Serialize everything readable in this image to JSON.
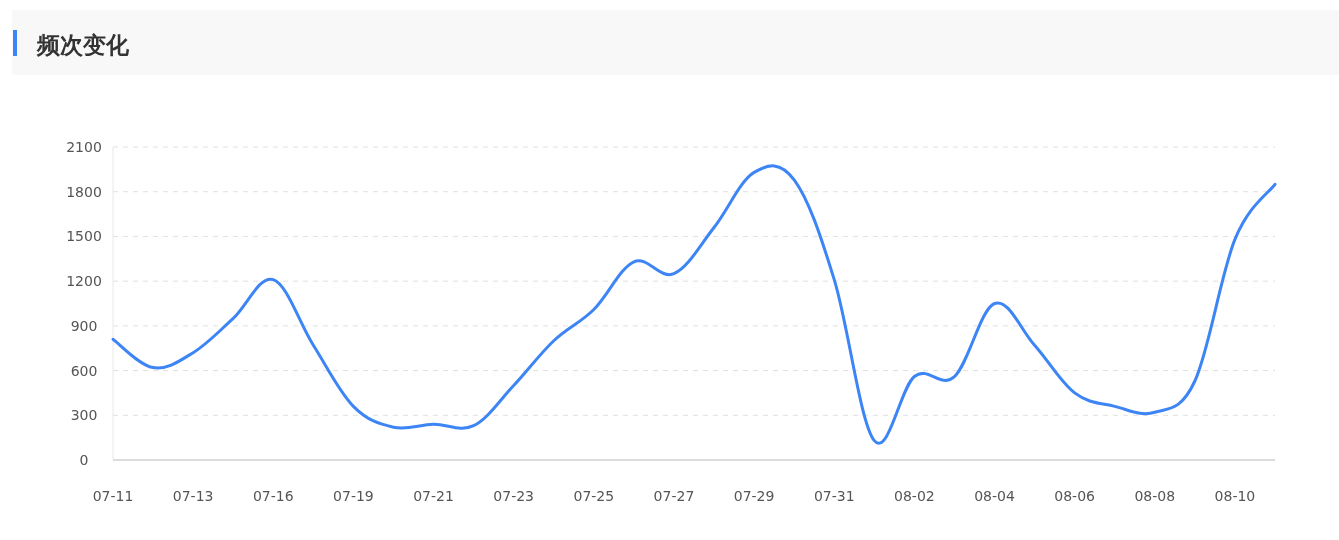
{
  "chart_data": {
    "type": "line",
    "title": "频次变化",
    "categories": [
      "07-11",
      null,
      "07-13",
      null,
      "07-16",
      null,
      "07-19",
      null,
      "07-21",
      null,
      "07-23",
      null,
      "07-25",
      null,
      "07-27",
      null,
      "07-29",
      null,
      "07-31",
      null,
      "08-02",
      null,
      "08-04",
      null,
      "08-06",
      null,
      "08-08",
      null,
      "08-10",
      null
    ],
    "series": [
      {
        "color": "#3d85f5",
        "values": [
          810,
          620,
          720,
          950,
          1210,
          770,
          360,
          220,
          240,
          230,
          500,
          800,
          1010,
          1330,
          1250,
          1560,
          1930,
          1880,
          1210,
          130,
          560,
          560,
          1050,
          770,
          450,
          360,
          320,
          530,
          1480,
          1850
        ]
      }
    ],
    "ylim": [
      0,
      2100
    ],
    "yticks": [
      0,
      300,
      600,
      900,
      1200,
      1500,
      1800,
      2100
    ],
    "grid": "y"
  }
}
